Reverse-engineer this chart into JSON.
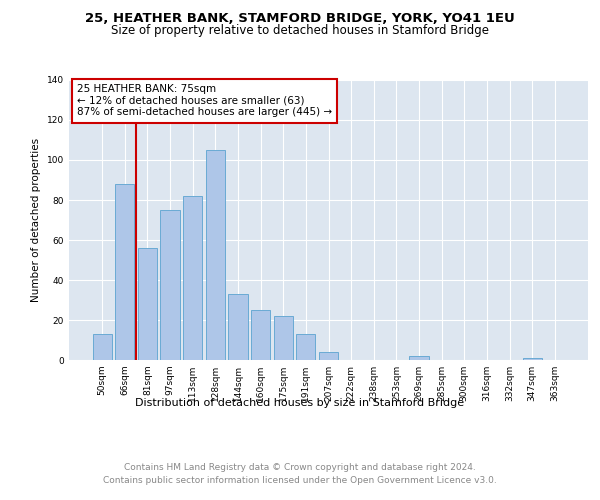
{
  "title1": "25, HEATHER BANK, STAMFORD BRIDGE, YORK, YO41 1EU",
  "title2": "Size of property relative to detached houses in Stamford Bridge",
  "xlabel": "Distribution of detached houses by size in Stamford Bridge",
  "ylabel": "Number of detached properties",
  "categories": [
    "50sqm",
    "66sqm",
    "81sqm",
    "97sqm",
    "113sqm",
    "128sqm",
    "144sqm",
    "160sqm",
    "175sqm",
    "191sqm",
    "207sqm",
    "222sqm",
    "238sqm",
    "253sqm",
    "269sqm",
    "285sqm",
    "300sqm",
    "316sqm",
    "332sqm",
    "347sqm",
    "363sqm"
  ],
  "values": [
    13,
    88,
    56,
    75,
    82,
    105,
    33,
    25,
    22,
    13,
    4,
    0,
    0,
    0,
    2,
    0,
    0,
    0,
    0,
    1,
    0
  ],
  "bar_color": "#aec6e8",
  "bar_edge_color": "#6aaad4",
  "vline_x": 1.5,
  "vline_color": "#cc0000",
  "annotation_box_text": "25 HEATHER BANK: 75sqm\n← 12% of detached houses are smaller (63)\n87% of semi-detached houses are larger (445) →",
  "annotation_box_color": "#ffffff",
  "annotation_box_edge_color": "#cc0000",
  "ylim": [
    0,
    140
  ],
  "yticks": [
    0,
    20,
    40,
    60,
    80,
    100,
    120,
    140
  ],
  "bg_color": "#dde6f0",
  "footer_line1": "Contains HM Land Registry data © Crown copyright and database right 2024.",
  "footer_line2": "Contains public sector information licensed under the Open Government Licence v3.0.",
  "title1_fontsize": 9.5,
  "title2_fontsize": 8.5,
  "xlabel_fontsize": 8,
  "ylabel_fontsize": 7.5,
  "tick_fontsize": 6.5,
  "annotation_fontsize": 7.5,
  "footer_fontsize": 6.5
}
